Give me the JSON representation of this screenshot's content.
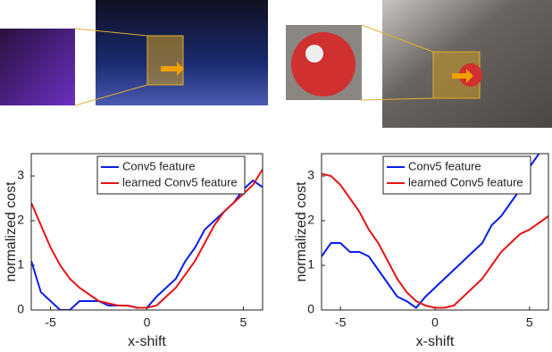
{
  "chart_data": [
    {
      "type": "line",
      "xlabel": "x-shift",
      "ylabel": "normalized cost",
      "x": [
        -6,
        -5.5,
        -5,
        -4.5,
        -4,
        -3.5,
        -3,
        -2.5,
        -2,
        -1.5,
        -1,
        -0.5,
        0,
        0.5,
        1,
        1.5,
        2,
        2.5,
        3,
        3.5,
        4,
        4.5,
        5,
        5.5,
        6
      ],
      "series": [
        {
          "name": "Conv5 feature",
          "color": "#0a1ee6",
          "values": [
            1.1,
            0.4,
            0.2,
            0.0,
            0.0,
            0.2,
            0.2,
            0.2,
            0.1,
            0.1,
            0.1,
            0.05,
            0.05,
            0.3,
            0.5,
            0.7,
            1.1,
            1.4,
            1.8,
            2.0,
            2.2,
            2.4,
            2.7,
            2.9,
            2.75
          ]
        },
        {
          "name": "learned Conv5 feature",
          "color": "#e61414",
          "values": [
            2.4,
            1.9,
            1.4,
            1.0,
            0.7,
            0.5,
            0.35,
            0.2,
            0.15,
            0.1,
            0.1,
            0.05,
            0.05,
            0.1,
            0.3,
            0.5,
            0.8,
            1.1,
            1.5,
            1.9,
            2.2,
            2.4,
            2.6,
            2.8,
            3.15
          ]
        }
      ],
      "xlim": [
        -6,
        6
      ],
      "ylim": [
        0,
        3.5
      ],
      "xticks": [
        -5,
        0,
        5
      ],
      "yticks": [
        0,
        1,
        2,
        3
      ],
      "legend": "upper right"
    },
    {
      "type": "line",
      "xlabel": "x-shift",
      "ylabel": "normalized cost",
      "x": [
        -6,
        -5.5,
        -5,
        -4.5,
        -4,
        -3.5,
        -3,
        -2.5,
        -2,
        -1.5,
        -1,
        -0.5,
        0,
        0.5,
        1,
        1.5,
        2,
        2.5,
        3,
        3.5,
        4,
        4.5,
        5,
        5.5,
        6
      ],
      "series": [
        {
          "name": "Conv5 feature",
          "color": "#0a1ee6",
          "values": [
            1.2,
            1.5,
            1.5,
            1.3,
            1.3,
            1.2,
            0.9,
            0.6,
            0.3,
            0.2,
            0.05,
            0.3,
            0.5,
            0.7,
            0.9,
            1.1,
            1.3,
            1.5,
            1.9,
            2.1,
            2.4,
            2.7,
            3.2,
            3.5,
            null
          ]
        },
        {
          "name": "learned Conv5 feature",
          "color": "#e61414",
          "values": [
            3.05,
            3.0,
            2.8,
            2.5,
            2.2,
            1.8,
            1.5,
            1.1,
            0.7,
            0.4,
            0.2,
            0.1,
            0.05,
            0.05,
            0.1,
            0.3,
            0.5,
            0.7,
            1.0,
            1.3,
            1.5,
            1.7,
            1.8,
            1.95,
            2.1
          ]
        }
      ],
      "xlim": [
        -6,
        6
      ],
      "ylim": [
        0,
        3.5
      ],
      "xticks": [
        -5,
        0,
        5
      ],
      "yticks": [
        0,
        1,
        2,
        3
      ],
      "legend": "upper right"
    }
  ]
}
